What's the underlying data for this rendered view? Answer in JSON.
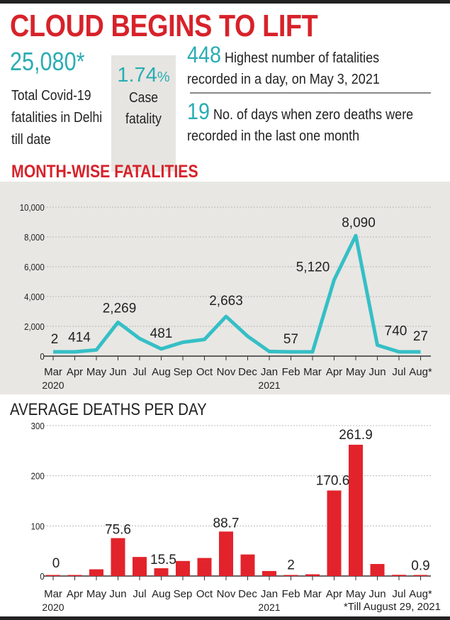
{
  "header": {
    "title": "CLOUD BEGINS TO LIFT",
    "total_value": "25,080*",
    "total_desc": "Total Covid-19 fatalities in Delhi till date",
    "cfr_value": "1.74",
    "cfr_unit": "%",
    "cfr_label": "Case fatality",
    "peak_value": "448",
    "peak_desc": "Highest number of fatalities recorded in a day, on May 3, 2021",
    "zero_value": "19",
    "zero_desc": "No. of days when zero deaths were recorded in the last one month"
  },
  "colors": {
    "title": "#d7222a",
    "teal": "#2aadb3",
    "line": "#35bfc6",
    "bar": "#e3232b"
  },
  "chart_data": [
    {
      "type": "line",
      "title": "MONTH-WISE FATALITIES",
      "categories": [
        "Mar",
        "Apr",
        "May",
        "Jun",
        "Jul",
        "Aug",
        "Sep",
        "Oct",
        "Nov",
        "Dec",
        "Jan",
        "Feb",
        "Mar",
        "Apr",
        "May",
        "Jun",
        "Jul",
        "Aug*"
      ],
      "year_labels": {
        "0": "2020",
        "10": "2021"
      },
      "values": [
        2,
        54,
        414,
        2269,
        1180,
        481,
        930,
        1120,
        2663,
        1330,
        310,
        57,
        117,
        5120,
        8090,
        740,
        75,
        27
      ],
      "data_labels": {
        "0": "2",
        "2": "414",
        "3": "2,269",
        "5": "481",
        "8": "2,663",
        "11": "57",
        "13": "5,120",
        "14": "8,090",
        "15": "740",
        "17": "27"
      },
      "yticks": [
        "0",
        "2,000",
        "4,000",
        "6,000",
        "8,000",
        "10,000"
      ],
      "ylim": [
        0,
        10000
      ],
      "grid": true
    },
    {
      "type": "bar",
      "title": "AVERAGE DEATHS PER DAY",
      "categories": [
        "Mar",
        "Apr",
        "May",
        "Jun",
        "Jul",
        "Aug",
        "Sep",
        "Oct",
        "Nov",
        "Dec",
        "Jan",
        "Feb",
        "Mar",
        "Apr",
        "May",
        "Jun",
        "Jul",
        "Aug*"
      ],
      "year_labels": {
        "0": "2020",
        "10": "2021"
      },
      "values": [
        0,
        1.8,
        13.4,
        75.6,
        38,
        15.5,
        30,
        36,
        88.7,
        43,
        10,
        2,
        3.5,
        170.6,
        261.9,
        24,
        2.4,
        0.9
      ],
      "data_labels": {
        "0": "0",
        "3": "75.6",
        "5": "15.5",
        "8": "88.7",
        "11": "2",
        "13": "170.6",
        "14": "261.9",
        "17": "0.9"
      },
      "yticks": [
        "0",
        "100",
        "200",
        "300"
      ],
      "ylim": [
        0,
        300
      ],
      "grid": true,
      "footnote": "*Till August 29, 2021"
    }
  ]
}
